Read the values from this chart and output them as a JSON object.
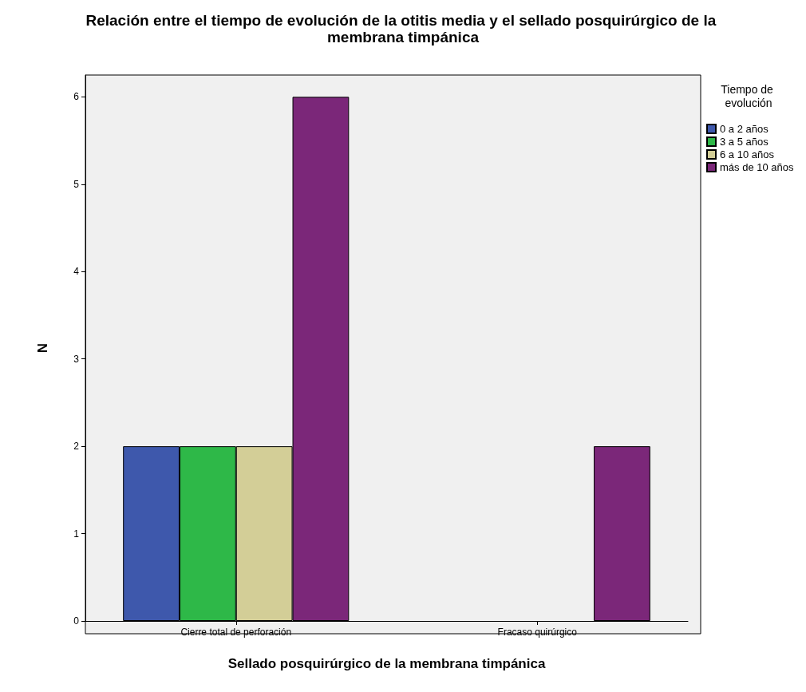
{
  "chart_data": {
    "type": "bar",
    "title": "Relación entre el tiempo de evolución de la otitis media y el sellado posquirúrgico de la membrana timpánica",
    "xlabel": "Sellado posquirúrgico de la membrana timpánica",
    "ylabel": "N",
    "legend_title": "Tiempo de evolución",
    "categories": [
      "Cierre total de perforación",
      "Fracaso quirúrgico"
    ],
    "series": [
      {
        "name": "0 a 2 años",
        "color": "#3e58ac",
        "values": [
          2,
          null
        ]
      },
      {
        "name": "3 a 5 años",
        "color": "#2eb848",
        "values": [
          2,
          null
        ]
      },
      {
        "name": "6 a 10 años",
        "color": "#d3ce97",
        "values": [
          2,
          null
        ]
      },
      {
        "name": "más de 10 años",
        "color": "#7b2779",
        "values": [
          6,
          2
        ]
      }
    ],
    "ylim": [
      0,
      6.25
    ],
    "yticks": [
      0,
      1,
      2,
      3,
      4,
      5,
      6
    ],
    "grid": false,
    "legend": "top right"
  }
}
